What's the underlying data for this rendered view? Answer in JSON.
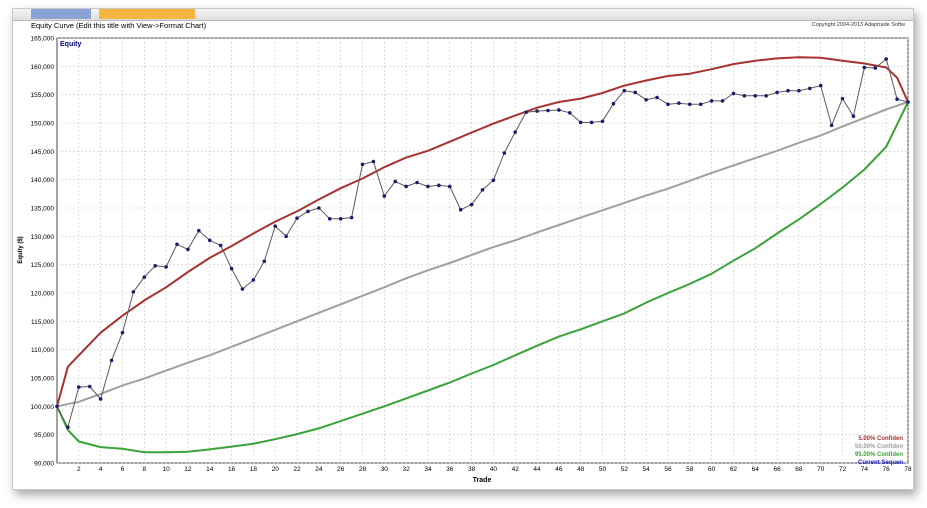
{
  "window": {
    "tab1_label": "",
    "tab2_label": "",
    "chart_title": "Equity Curve (Edit this title with View->Format Chart)",
    "copyright": "Copyright 2004-2013 Adaptrade Softw"
  },
  "colors": {
    "five_pct": "#a83232",
    "fifty_pct": "#a0a0a0",
    "ninetyfive_pct": "#3aa33a",
    "current": "#5a5a5a",
    "marker": "#1c1c6e",
    "grid": "#c8c8c8",
    "legend_current": "#1a1acc"
  },
  "chart_data": {
    "type": "line",
    "title": "Equity",
    "xlabel": "Trade",
    "ylabel": "Equity ($)",
    "xlim": [
      0,
      78
    ],
    "ylim": [
      90000,
      165000
    ],
    "grid": true,
    "legend_position": "bottom-right",
    "x_ticks": [
      2,
      4,
      6,
      8,
      10,
      12,
      14,
      16,
      18,
      20,
      22,
      24,
      26,
      28,
      30,
      32,
      34,
      36,
      38,
      40,
      42,
      44,
      46,
      48,
      50,
      52,
      54,
      56,
      58,
      60,
      62,
      64,
      66,
      68,
      70,
      72,
      74,
      76,
      78
    ],
    "y_ticks": [
      90000,
      95000,
      100000,
      105000,
      110000,
      115000,
      120000,
      125000,
      130000,
      135000,
      140000,
      145000,
      150000,
      155000,
      160000,
      165000
    ],
    "y_tick_labels": [
      "90,000",
      "95,000",
      "100,000",
      "105,000",
      "110,000",
      "115,000",
      "120,000",
      "125,000",
      "130,000",
      "135,000",
      "140,000",
      "145,000",
      "150,000",
      "155,000",
      "160,000",
      "165,000"
    ],
    "series": [
      {
        "name": "5.00% Confiden",
        "x": [
          0,
          1,
          2,
          4,
          6,
          8,
          10,
          12,
          14,
          16,
          18,
          20,
          22,
          24,
          26,
          28,
          30,
          32,
          34,
          36,
          38,
          40,
          42,
          44,
          46,
          48,
          50,
          52,
          54,
          56,
          58,
          60,
          62,
          64,
          66,
          68,
          70,
          72,
          74,
          76,
          77,
          78
        ],
        "values": [
          100000,
          107000,
          109000,
          113000,
          116000,
          118700,
          121000,
          123700,
          126200,
          128300,
          130500,
          132600,
          134400,
          136500,
          138500,
          140200,
          142200,
          143900,
          145100,
          146700,
          148300,
          149900,
          151300,
          152700,
          153700,
          154300,
          155300,
          156600,
          157500,
          158300,
          158700,
          159500,
          160400,
          161000,
          161400,
          161600,
          161500,
          161000,
          160500,
          159800,
          158000,
          153700
        ],
        "line_width": 2
      },
      {
        "name": "50.00% Confiden",
        "x": [
          0,
          2,
          4,
          6,
          8,
          10,
          12,
          14,
          16,
          18,
          20,
          22,
          24,
          26,
          28,
          30,
          32,
          34,
          36,
          38,
          40,
          42,
          44,
          46,
          48,
          50,
          52,
          54,
          56,
          58,
          60,
          62,
          64,
          66,
          68,
          70,
          72,
          74,
          76,
          78
        ],
        "values": [
          100000,
          100800,
          102200,
          103700,
          104900,
          106300,
          107700,
          109000,
          110500,
          112000,
          113500,
          115000,
          116500,
          118000,
          119500,
          121000,
          122600,
          124000,
          125300,
          126700,
          128100,
          129300,
          130700,
          132000,
          133300,
          134600,
          135900,
          137200,
          138400,
          139800,
          141200,
          142500,
          143800,
          145100,
          146500,
          147800,
          149400,
          150900,
          152400,
          153700
        ],
        "line_width": 2
      },
      {
        "name": "95.00% Confiden",
        "x": [
          0,
          1,
          2,
          4,
          6,
          8,
          10,
          12,
          14,
          16,
          18,
          20,
          22,
          24,
          26,
          28,
          30,
          32,
          34,
          36,
          38,
          40,
          42,
          44,
          46,
          48,
          50,
          52,
          54,
          56,
          58,
          60,
          62,
          64,
          66,
          68,
          70,
          72,
          74,
          76,
          78
        ],
        "values": [
          100000,
          95800,
          93800,
          92800,
          92500,
          91900,
          91900,
          92000,
          92400,
          92900,
          93400,
          94200,
          95100,
          96100,
          97400,
          98700,
          100000,
          101400,
          102800,
          104200,
          105800,
          107300,
          109000,
          110700,
          112300,
          113600,
          115000,
          116400,
          118300,
          120000,
          121600,
          123400,
          125700,
          127900,
          130500,
          133000,
          135700,
          138600,
          141800,
          145800,
          153700
        ],
        "line_width": 2
      },
      {
        "name": "Current Sequen",
        "x": [
          0,
          1,
          2,
          3,
          4,
          5,
          6,
          7,
          8,
          9,
          10,
          11,
          12,
          13,
          14,
          15,
          16,
          17,
          18,
          19,
          20,
          21,
          22,
          23,
          24,
          25,
          26,
          27,
          28,
          29,
          30,
          31,
          32,
          33,
          34,
          35,
          36,
          37,
          38,
          39,
          40,
          41,
          42,
          43,
          44,
          45,
          46,
          47,
          48,
          49,
          50,
          51,
          52,
          53,
          54,
          55,
          56,
          57,
          58,
          59,
          60,
          61,
          62,
          63,
          64,
          65,
          66,
          67,
          68,
          69,
          70,
          71,
          72,
          73,
          74,
          75,
          76,
          77,
          78
        ],
        "values": [
          100000,
          96300,
          103400,
          103500,
          101300,
          108100,
          113000,
          120200,
          122800,
          124800,
          124600,
          128600,
          127700,
          131000,
          129300,
          128400,
          124300,
          120700,
          122300,
          125600,
          131800,
          130000,
          133200,
          134400,
          135000,
          133100,
          133100,
          133300,
          142700,
          143200,
          137100,
          139700,
          138800,
          139500,
          138800,
          139000,
          138800,
          134700,
          135600,
          138200,
          139900,
          144700,
          148400,
          151900,
          152100,
          152200,
          152300,
          151800,
          150100,
          150100,
          150300,
          153400,
          155700,
          155400,
          154100,
          154500,
          153300,
          153500,
          153300,
          153300,
          153900,
          153900,
          155200,
          154800,
          154800,
          154800,
          155400,
          155700,
          155700,
          156100,
          156600,
          149600,
          154300,
          151200,
          159800,
          159700,
          161300,
          154200,
          153700
        ],
        "line_width": 1,
        "markers": true
      }
    ]
  }
}
